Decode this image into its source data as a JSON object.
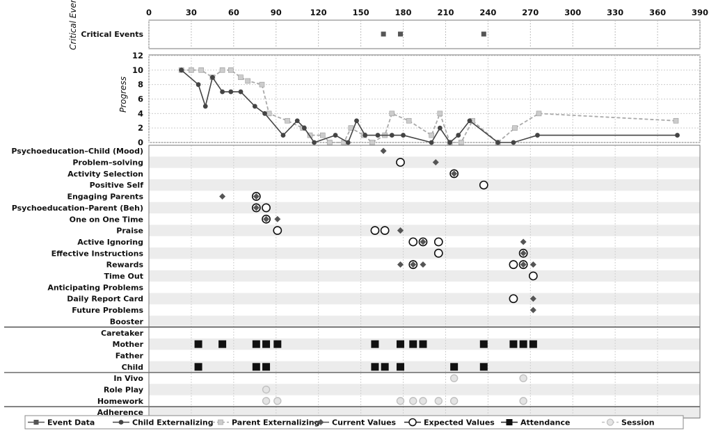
{
  "chart_data": {
    "type": "line",
    "x_axis": {
      "ticks": [
        "0",
        "30",
        "60",
        "90",
        "120",
        "150",
        "180",
        "210",
        "240",
        "270",
        "300",
        "330",
        "360",
        "390"
      ],
      "range": [
        0,
        390
      ]
    },
    "critical_events": {
      "ylabel": "Critical Events",
      "row_label": "Critical Events",
      "x": [
        166,
        178,
        237
      ]
    },
    "progress": {
      "ylabel": "Progress",
      "ylim": [
        0,
        12
      ],
      "yticks": [
        "0",
        "2",
        "4",
        "6",
        "8",
        "10",
        "12"
      ],
      "series": [
        {
          "name": "Child Externalizing",
          "points": [
            [
              23,
              10
            ],
            [
              35,
              8
            ],
            [
              40,
              5
            ],
            [
              45,
              9
            ],
            [
              52,
              7
            ],
            [
              58,
              7
            ],
            [
              65,
              7
            ],
            [
              75,
              5
            ],
            [
              82,
              4
            ],
            [
              95,
              1
            ],
            [
              105,
              3
            ],
            [
              110,
              2
            ],
            [
              117,
              0
            ],
            [
              132,
              1
            ],
            [
              141,
              0
            ],
            [
              147,
              3
            ],
            [
              153,
              1
            ],
            [
              162,
              1
            ],
            [
              172,
              1
            ],
            [
              180,
              1
            ],
            [
              200,
              0
            ],
            [
              206,
              2
            ],
            [
              213,
              0
            ],
            [
              219,
              1
            ],
            [
              227,
              3
            ],
            [
              247,
              0
            ],
            [
              258,
              0
            ],
            [
              275,
              1
            ],
            [
              374,
              1
            ]
          ]
        },
        {
          "name": "Parent Externalizing",
          "points": [
            [
              23,
              10
            ],
            [
              30,
              10
            ],
            [
              37,
              10
            ],
            [
              45,
              9
            ],
            [
              52,
              10
            ],
            [
              58,
              10
            ],
            [
              65,
              9
            ],
            [
              70,
              8.5
            ],
            [
              80,
              8
            ],
            [
              85,
              4
            ],
            [
              98,
              3
            ],
            [
              109,
              2
            ],
            [
              114,
              1
            ],
            [
              123,
              1
            ],
            [
              128,
              0
            ],
            [
              138,
              0
            ],
            [
              143,
              2
            ],
            [
              152,
              1
            ],
            [
              158,
              0
            ],
            [
              167,
              1
            ],
            [
              172,
              4
            ],
            [
              184,
              3
            ],
            [
              200,
              1
            ],
            [
              206,
              4
            ],
            [
              213,
              0
            ],
            [
              221,
              0
            ],
            [
              229,
              3
            ],
            [
              247,
              0
            ],
            [
              259,
              2
            ],
            [
              276,
              4
            ],
            [
              373,
              3
            ]
          ]
        }
      ]
    },
    "rows": [
      {
        "label": "Psychoeducation–Child (Mood)",
        "group": "topics"
      },
      {
        "label": "Problem–solving",
        "group": "topics"
      },
      {
        "label": "Activity Selection",
        "group": "topics"
      },
      {
        "label": "Positive Self",
        "group": "topics"
      },
      {
        "label": "Engaging Parents",
        "group": "topics"
      },
      {
        "label": "Psychoeducation–Parent (Beh)",
        "group": "topics"
      },
      {
        "label": "One on One Time",
        "group": "topics"
      },
      {
        "label": "Praise",
        "group": "topics"
      },
      {
        "label": "Active Ignoring",
        "group": "topics"
      },
      {
        "label": "Effective Instructions",
        "group": "topics"
      },
      {
        "label": "Rewards",
        "group": "topics"
      },
      {
        "label": "Time Out",
        "group": "topics"
      },
      {
        "label": "Anticipating Problems",
        "group": "topics"
      },
      {
        "label": "Daily Report Card",
        "group": "topics"
      },
      {
        "label": "Future  Problems",
        "group": "topics"
      },
      {
        "label": "Booster",
        "group": "topics"
      },
      {
        "label": "Caretaker",
        "group": "attendance"
      },
      {
        "label": "Mother",
        "group": "attendance"
      },
      {
        "label": "Father",
        "group": "attendance"
      },
      {
        "label": "Child",
        "group": "attendance"
      },
      {
        "label": "In Vivo",
        "group": "session"
      },
      {
        "label": "Role Play",
        "group": "session"
      },
      {
        "label": "Homework",
        "group": "session"
      },
      {
        "label": "Adherence",
        "group": "adherence"
      }
    ],
    "markers": [
      {
        "type": "current",
        "row": 0,
        "x": 166
      },
      {
        "type": "expected",
        "row": 1,
        "x": 178
      },
      {
        "type": "current",
        "row": 1,
        "x": 203
      },
      {
        "type": "expected",
        "row": 2,
        "x": 216
      },
      {
        "type": "current",
        "row": 2,
        "x": 216
      },
      {
        "type": "expected",
        "row": 3,
        "x": 237
      },
      {
        "type": "current",
        "row": 4,
        "x": 52
      },
      {
        "type": "expected",
        "row": 4,
        "x": 76
      },
      {
        "type": "current",
        "row": 4,
        "x": 76
      },
      {
        "type": "expected",
        "row": 5,
        "x": 76
      },
      {
        "type": "current",
        "row": 5,
        "x": 76
      },
      {
        "type": "expected",
        "row": 5,
        "x": 83
      },
      {
        "type": "expected",
        "row": 6,
        "x": 83
      },
      {
        "type": "current",
        "row": 6,
        "x": 83
      },
      {
        "type": "current",
        "row": 6,
        "x": 91
      },
      {
        "type": "expected",
        "row": 7,
        "x": 91
      },
      {
        "type": "expected",
        "row": 7,
        "x": 160
      },
      {
        "type": "expected",
        "row": 7,
        "x": 167
      },
      {
        "type": "current",
        "row": 7,
        "x": 178
      },
      {
        "type": "current",
        "row": 7,
        "x": 178
      },
      {
        "type": "expected",
        "row": 8,
        "x": 187
      },
      {
        "type": "expected",
        "row": 8,
        "x": 194
      },
      {
        "type": "current",
        "row": 8,
        "x": 194
      },
      {
        "type": "expected",
        "row": 8,
        "x": 205
      },
      {
        "type": "current",
        "row": 8,
        "x": 265
      },
      {
        "type": "expected",
        "row": 9,
        "x": 205
      },
      {
        "type": "expected",
        "row": 9,
        "x": 265
      },
      {
        "type": "current",
        "row": 9,
        "x": 265
      },
      {
        "type": "current",
        "row": 10,
        "x": 178
      },
      {
        "type": "expected",
        "row": 10,
        "x": 187
      },
      {
        "type": "current",
        "row": 10,
        "x": 187
      },
      {
        "type": "current",
        "row": 10,
        "x": 194
      },
      {
        "type": "expected",
        "row": 10,
        "x": 258
      },
      {
        "type": "expected",
        "row": 10,
        "x": 265
      },
      {
        "type": "current",
        "row": 10,
        "x": 265
      },
      {
        "type": "current",
        "row": 10,
        "x": 272
      },
      {
        "type": "expected",
        "row": 11,
        "x": 272
      },
      {
        "type": "expected",
        "row": 13,
        "x": 258
      },
      {
        "type": "current",
        "row": 13,
        "x": 272
      },
      {
        "type": "current",
        "row": 14,
        "x": 272
      },
      {
        "type": "attendance",
        "row": 17,
        "x": 35
      },
      {
        "type": "attendance",
        "row": 17,
        "x": 52
      },
      {
        "type": "attendance",
        "row": 17,
        "x": 76
      },
      {
        "type": "attendance",
        "row": 17,
        "x": 83
      },
      {
        "type": "attendance",
        "row": 17,
        "x": 91
      },
      {
        "type": "attendance",
        "row": 17,
        "x": 160
      },
      {
        "type": "attendance",
        "row": 17,
        "x": 178
      },
      {
        "type": "attendance",
        "row": 17,
        "x": 187
      },
      {
        "type": "attendance",
        "row": 17,
        "x": 194
      },
      {
        "type": "attendance",
        "row": 17,
        "x": 237
      },
      {
        "type": "attendance",
        "row": 17,
        "x": 258
      },
      {
        "type": "attendance",
        "row": 17,
        "x": 265
      },
      {
        "type": "attendance",
        "row": 17,
        "x": 272
      },
      {
        "type": "attendance",
        "row": 19,
        "x": 35
      },
      {
        "type": "attendance",
        "row": 19,
        "x": 76
      },
      {
        "type": "attendance",
        "row": 19,
        "x": 83
      },
      {
        "type": "attendance",
        "row": 19,
        "x": 160
      },
      {
        "type": "attendance",
        "row": 19,
        "x": 167
      },
      {
        "type": "attendance",
        "row": 19,
        "x": 178
      },
      {
        "type": "attendance",
        "row": 19,
        "x": 216
      },
      {
        "type": "attendance",
        "row": 19,
        "x": 237
      },
      {
        "type": "session",
        "row": 20,
        "x": 216
      },
      {
        "type": "session",
        "row": 20,
        "x": 265
      },
      {
        "type": "session",
        "row": 21,
        "x": 83
      },
      {
        "type": "session",
        "row": 22,
        "x": 83
      },
      {
        "type": "session",
        "row": 22,
        "x": 91
      },
      {
        "type": "session",
        "row": 22,
        "x": 178
      },
      {
        "type": "session",
        "row": 22,
        "x": 187
      },
      {
        "type": "session",
        "row": 22,
        "x": 194
      },
      {
        "type": "session",
        "row": 22,
        "x": 205
      },
      {
        "type": "session",
        "row": 22,
        "x": 216
      },
      {
        "type": "session",
        "row": 22,
        "x": 265
      }
    ],
    "legend": [
      {
        "key": "event",
        "label": "Event Data"
      },
      {
        "key": "child",
        "label": "Child Externalizing"
      },
      {
        "key": "parent",
        "label": "Parent Externalizing"
      },
      {
        "key": "current",
        "label": "Current Values"
      },
      {
        "key": "expected",
        "label": "Expected Values"
      },
      {
        "key": "attendance",
        "label": "Attendance"
      },
      {
        "key": "session",
        "label": "Session"
      }
    ],
    "legend_position": "bottom",
    "grid": true,
    "colors": {
      "event": "#555555",
      "child": "#444444",
      "parent": "#aaaaaa",
      "current": "#555555",
      "expected": "#111111",
      "attendance": "#111111",
      "session": "#c0c0c0"
    }
  }
}
